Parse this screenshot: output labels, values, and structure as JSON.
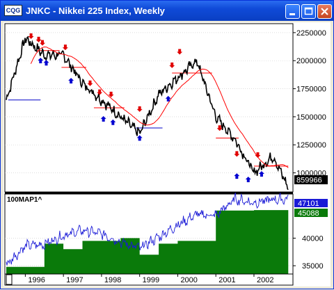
{
  "window": {
    "icon_text": "CQG",
    "title": "JNKC - Nikkei 225 Index, Weekly"
  },
  "colors": {
    "price": "#000000",
    "ma": "#ff0000",
    "level_up": "#ff0000",
    "level_down": "#0000c8",
    "arrow_down": "#e00000",
    "arrow_up": "#0000d0",
    "indicator_line": "#1a1ad6",
    "indicator_fill": "#0a7a0a",
    "price_badge": "#000000",
    "ind_badge_1": "#1a1ad6",
    "ind_badge_2": "#0a7a0a"
  },
  "upper": {
    "price_badge": "859966",
    "y_ticks": [
      "2250000",
      "2000000",
      "1750000",
      "1500000",
      "1250000",
      "1000000"
    ]
  },
  "lower": {
    "label": "100MAP1^",
    "badge_1": "47101",
    "badge_2": "45088",
    "y_ticks": [
      "40000",
      "35000"
    ]
  },
  "x_axis": {
    "years": [
      "1996",
      "1997",
      "1998",
      "1999",
      "2000",
      "2001",
      "2002"
    ]
  },
  "chart_data": [
    {
      "type": "line",
      "x": [
        "1995.5",
        "1996.0",
        "1996.5",
        "1997.0",
        "1997.5",
        "1998.0",
        "1998.5",
        "1999.0",
        "1999.5",
        "2000.0",
        "2000.5",
        "2001.0",
        "2001.5",
        "2002.0",
        "2002.5",
        "2002.9"
      ],
      "series": [
        {
          "values": [
            1650000,
            2200000,
            2050000,
            2050000,
            1800000,
            1650000,
            1500000,
            1350000,
            1700000,
            1850000,
            2000000,
            1500000,
            1300000,
            1000000,
            1150000,
            870000
          ]
        }
      ],
      "ylim": [
        830000,
        2330000
      ]
    },
    {
      "type": "area",
      "x": [
        "1995.5",
        "1996.0",
        "1996.5",
        "1997.0",
        "1997.5",
        "1998.0",
        "1998.5",
        "1999.0",
        "1999.5",
        "2000.0",
        "2000.5",
        "2001.0",
        "2001.5",
        "2002.0",
        "2002.5",
        "2002.9"
      ],
      "series": [
        {
          "values": [
            35200,
            38600,
            38900,
            40500,
            41400,
            40800,
            39300,
            38200,
            40200,
            42400,
            44300,
            44100,
            47100,
            46400,
            47000,
            47101
          ]
        },
        {
          "values": [
            34800,
            34800,
            39000,
            38000,
            39500,
            39500,
            40000,
            37000,
            39000,
            39500,
            39500,
            45000,
            45000,
            45088,
            45088,
            45088
          ]
        }
      ],
      "ylim": [
        33500,
        48000
      ]
    }
  ]
}
